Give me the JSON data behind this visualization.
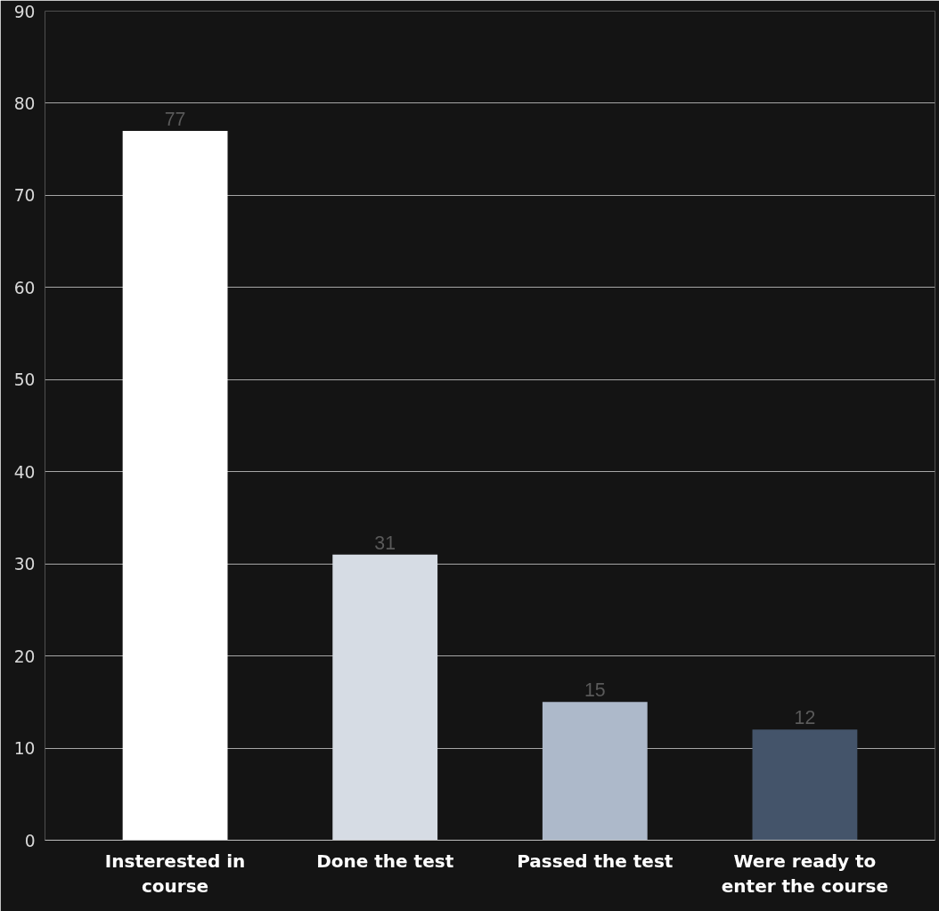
{
  "chart_data": {
    "type": "bar",
    "categories": [
      "Insterested in course",
      "Done the test",
      "Passed the test",
      "Were ready to enter the course"
    ],
    "values": [
      77,
      31,
      15,
      12
    ],
    "colors": [
      "#ffffff",
      "#d6dce4",
      "#adb9ca",
      "#44546a"
    ],
    "ylim": [
      0,
      90
    ],
    "yticks": [
      0,
      10,
      20,
      30,
      40,
      50,
      60,
      70,
      80,
      90
    ],
    "grid": "y",
    "data_labels": true
  }
}
